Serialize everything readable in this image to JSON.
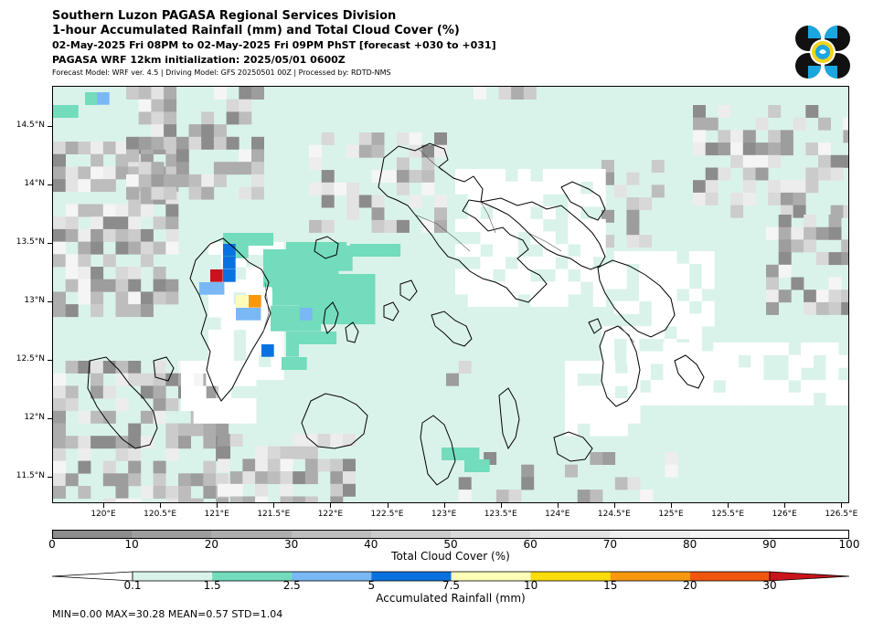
{
  "header": {
    "title1": "Southern Luzon PAGASA Regional Services Division",
    "title2": "1-hour Accumulated Rainfall (mm) and Total Cloud Cover (%)",
    "title3": "02-May-2025 Fri 08PM to 02-May-2025 Fri 09PM PhST [forecast +030 to +031]",
    "title4": "PAGASA WRF 12km initialization: 2025/05/01 0600Z",
    "title5": "Forecast Model: WRF ver. 4.5 | Driving Model: GFS 20250501 00Z | Processed by: RDTD-NMS"
  },
  "map": {
    "lat_labels": [
      "14.5°N",
      "14°N",
      "13.5°N",
      "13°N",
      "12.5°N",
      "12°N",
      "11.5°N"
    ],
    "lon_labels": [
      "120°E",
      "120.5°E",
      "121°E",
      "121.5°E",
      "122°E",
      "122.5°E",
      "123°E",
      "123.5°E",
      "124°E",
      "124.5°E",
      "125°E",
      "125.5°E",
      "126°E",
      "126.5°E"
    ]
  },
  "cloud_colorbar": {
    "title": "Total Cloud Cover (%)",
    "labels": [
      "0",
      "10",
      "20",
      "30",
      "40",
      "50",
      "60",
      "70",
      "80",
      "90",
      "100"
    ],
    "colors": [
      "#8c8c8c",
      "#9d9d9d",
      "#adadad",
      "#bdbdbd",
      "#cbcbcb",
      "#d8d8d8",
      "#e3e3e3",
      "#ededed",
      "#f5f5f5",
      "#ffffff"
    ]
  },
  "rain_colorbar": {
    "title": "Accumulated Rainfall (mm)",
    "labels": [
      "0.1",
      "1.5",
      "2.5",
      "5",
      "7.5",
      "10",
      "15",
      "20",
      "30"
    ],
    "colors": [
      "#daf3ea",
      "#72dcbc",
      "#7ab8f5",
      "#0a72e0",
      "#fdfdb8",
      "#f9dc0a",
      "#f7980f",
      "#f1560f",
      "#c9141b"
    ]
  },
  "stats": "MIN=0.00   MAX=30.28   MEAN=0.57   STD=1.04",
  "logo": {
    "name": "pagasa-logo",
    "colors": [
      "#111111",
      "#1aa7e0",
      "#f5d31a"
    ]
  }
}
